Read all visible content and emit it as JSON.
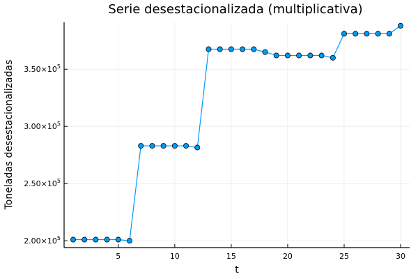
{
  "chart_data": {
    "type": "line",
    "title": "Serie desestacionalizada (multiplicativa)",
    "xlabel": "t",
    "ylabel": "Toneladas desestacionalizadas",
    "xlim": [
      0.2,
      30.8
    ],
    "ylim": [
      194000,
      391000
    ],
    "xticks": [
      5,
      10,
      15,
      20,
      25,
      30
    ],
    "yticks": [
      {
        "value": 200000,
        "mantissa": "2.00",
        "exp": "5"
      },
      {
        "value": 250000,
        "mantissa": "2.50",
        "exp": "5"
      },
      {
        "value": 300000,
        "mantissa": "3.00",
        "exp": "5"
      },
      {
        "value": 350000,
        "mantissa": "3.50",
        "exp": "5"
      }
    ],
    "grid": true,
    "legend": false,
    "series": [
      {
        "color": "#009AFA",
        "marker": "circle",
        "x": [
          1,
          2,
          3,
          4,
          5,
          6,
          7,
          8,
          9,
          10,
          11,
          12,
          13,
          14,
          15,
          16,
          17,
          18,
          19,
          20,
          21,
          22,
          23,
          24,
          25,
          26,
          27,
          28,
          29,
          30
        ],
        "values": [
          201000,
          201000,
          201000,
          201000,
          201000,
          200000,
          283000,
          283000,
          283000,
          283000,
          283000,
          281500,
          367500,
          367500,
          367500,
          367500,
          367500,
          365000,
          362000,
          362000,
          362000,
          362000,
          362000,
          360000,
          381000,
          381000,
          381000,
          381000,
          381000,
          388000
        ]
      }
    ]
  }
}
